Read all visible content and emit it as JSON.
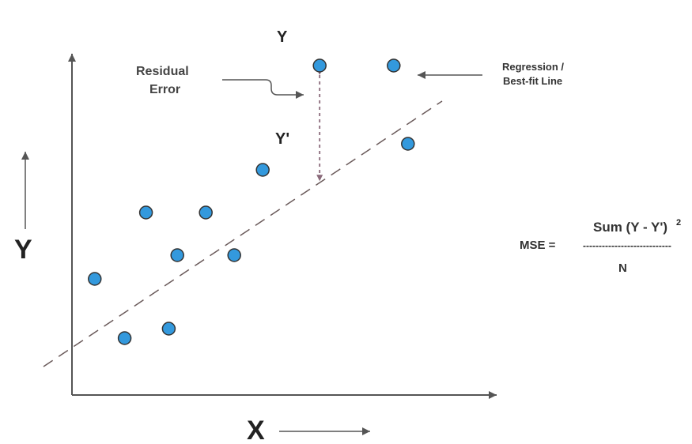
{
  "labels": {
    "y_axis": "Y",
    "x_axis": "X",
    "y_actual": "Y",
    "y_predicted": "Y'",
    "residual_line1": "Residual",
    "residual_line2": "Error",
    "regression_line1": "Regression /",
    "regression_line2": "Best-fit Line"
  },
  "formula": {
    "lhs": "MSE =",
    "numerator": "Sum (Y - Y')",
    "exponent": "2",
    "fraction_bar": "----------------------------",
    "denominator": "N"
  },
  "colors": {
    "point_fill": "#3399dd",
    "point_stroke": "#333333",
    "axis": "#555555",
    "regression_line": "#6a5a5a",
    "residual": "#8a6a7a"
  },
  "chart_data": {
    "type": "scatter",
    "points": [
      {
        "x": 0.8,
        "y": 4.9
      },
      {
        "x": 1.85,
        "y": 2.4
      },
      {
        "x": 2.6,
        "y": 7.7
      },
      {
        "x": 3.4,
        "y": 2.8
      },
      {
        "x": 3.7,
        "y": 5.9
      },
      {
        "x": 4.7,
        "y": 7.7
      },
      {
        "x": 5.7,
        "y": 5.9
      },
      {
        "x": 6.7,
        "y": 9.5
      },
      {
        "x": 8.7,
        "y": 13.9
      },
      {
        "x": 11.3,
        "y": 13.9
      },
      {
        "x": 11.8,
        "y": 10.6
      }
    ],
    "regression_line": {
      "slope": 0.8,
      "intercept": 2.0
    },
    "highlighted_point_index": 8
  }
}
